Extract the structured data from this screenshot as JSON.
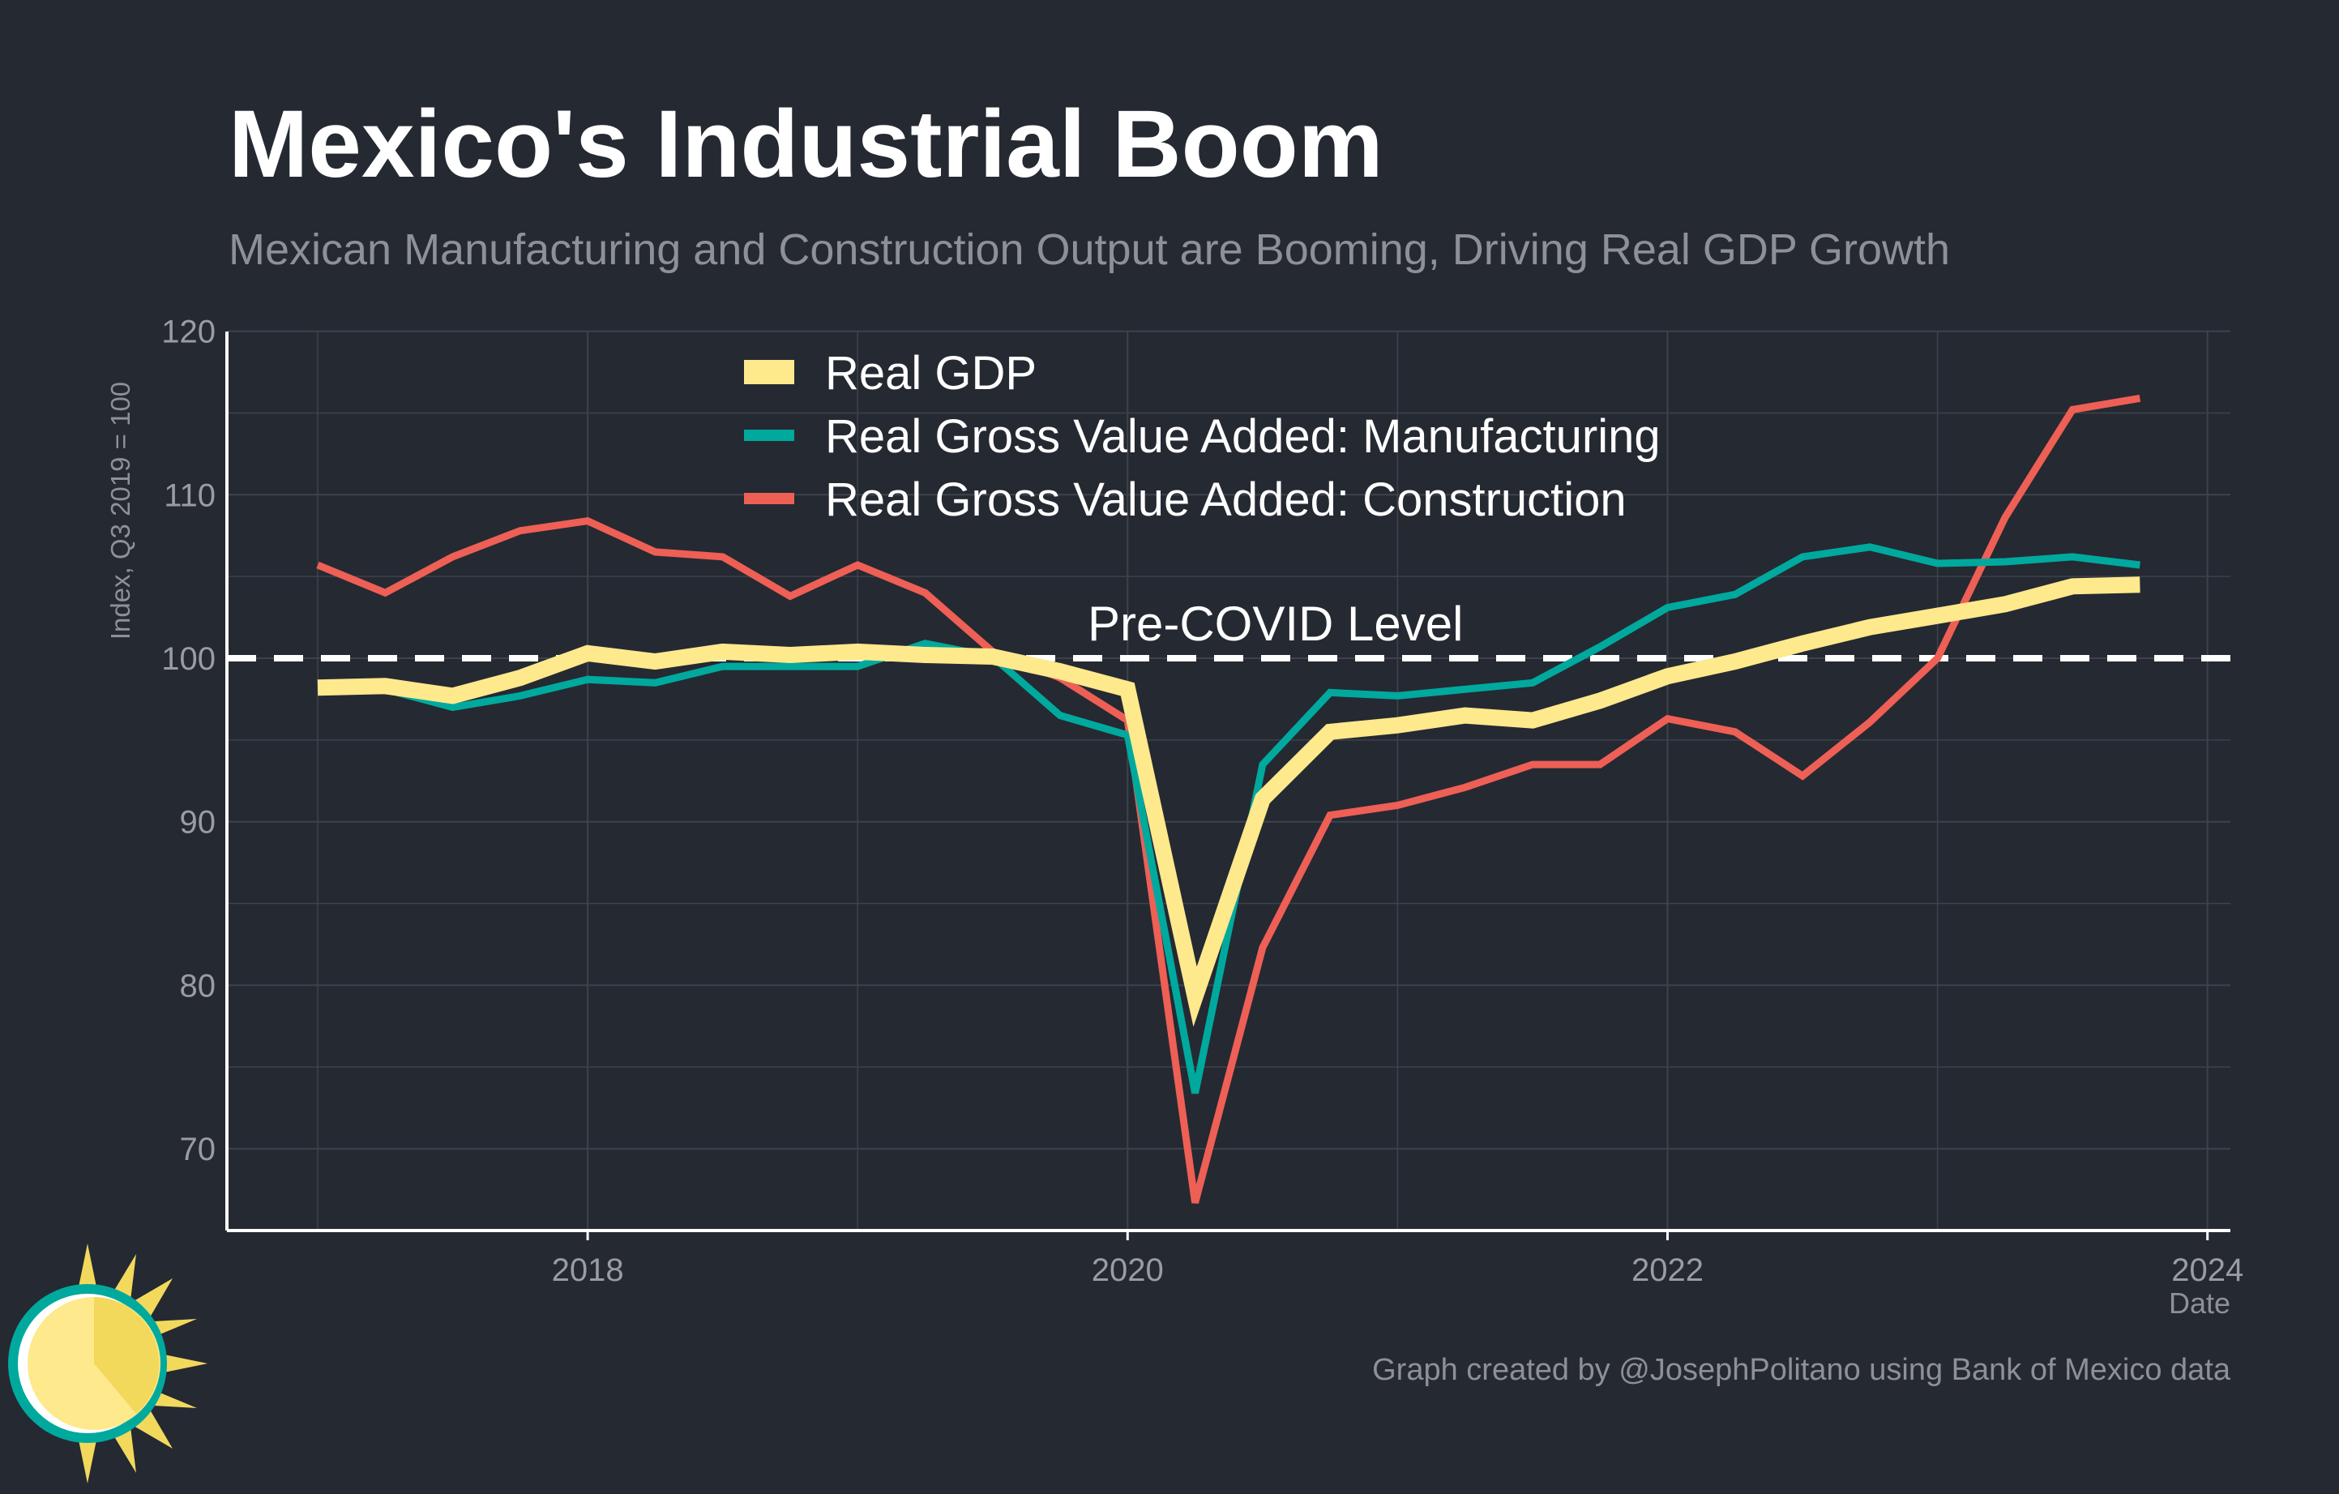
{
  "title": "Mexico's Industrial Boom",
  "subtitle": "Mexican Manufacturing and Construction Output are Booming, Driving Real GDP Growth",
  "caption": "Graph created by @JosephPolitano using Bank of Mexico data",
  "colors": {
    "background": "#252932",
    "gdp": "#fee98c",
    "manufacturing": "#00a99d",
    "construction": "#ee5f55",
    "grid": "#3e424b",
    "text": "#9a9ca3"
  },
  "chart_data": {
    "type": "line",
    "title": "Mexico's Industrial Boom",
    "xlabel": "Date",
    "ylabel": "Index, Q3 2019 = 100",
    "xlim": [
      2016.67,
      2024.1
    ],
    "ylim": [
      65,
      120
    ],
    "x_ticks": [
      "2018",
      "2020",
      "2022",
      "2024"
    ],
    "y_ticks": [
      "70",
      "80",
      "90",
      "100",
      "110",
      "120"
    ],
    "grid": true,
    "legend_position": "top-center",
    "x": [
      2017.0,
      2017.25,
      2017.5,
      2017.75,
      2018.0,
      2018.25,
      2018.5,
      2018.75,
      2019.0,
      2019.25,
      2019.5,
      2019.75,
      2020.0,
      2020.25,
      2020.5,
      2020.75,
      2021.0,
      2021.25,
      2021.5,
      2021.75,
      2022.0,
      2022.25,
      2022.5,
      2022.75,
      2023.0,
      2023.25,
      2023.5,
      2023.75
    ],
    "series": [
      {
        "name": "Real GDP",
        "values": [
          98.2,
          98.3,
          97.7,
          98.8,
          100.3,
          99.8,
          100.4,
          100.2,
          100.4,
          100.2,
          100.1,
          99.2,
          98.1,
          79.3,
          91.4,
          95.5,
          95.9,
          96.5,
          96.2,
          97.4,
          98.9,
          99.8,
          100.9,
          101.9,
          102.6,
          103.3,
          104.4,
          104.5
        ]
      },
      {
        "name": "Real Gross Value Added: Manufacturing",
        "values": [
          98.2,
          98.1,
          97.0,
          97.7,
          98.7,
          98.5,
          99.5,
          99.5,
          99.5,
          100.9,
          100.1,
          96.5,
          95.3,
          73.4,
          93.5,
          97.9,
          97.7,
          98.1,
          98.5,
          100.7,
          103.1,
          103.9,
          106.2,
          106.8,
          105.8,
          105.9,
          106.2,
          105.7
        ]
      },
      {
        "name": "Real Gross Value Added: Construction",
        "values": [
          105.7,
          104.0,
          106.2,
          107.8,
          108.4,
          106.5,
          106.2,
          103.8,
          105.7,
          104.0,
          100.4,
          98.8,
          96.2,
          66.7,
          82.3,
          90.4,
          91.0,
          92.1,
          93.5,
          93.5,
          96.3,
          95.5,
          92.8,
          96.1,
          100.0,
          108.6,
          115.2,
          115.9
        ]
      }
    ],
    "annotations": [
      {
        "text": "Pre-COVID Level",
        "y": 100
      }
    ]
  }
}
